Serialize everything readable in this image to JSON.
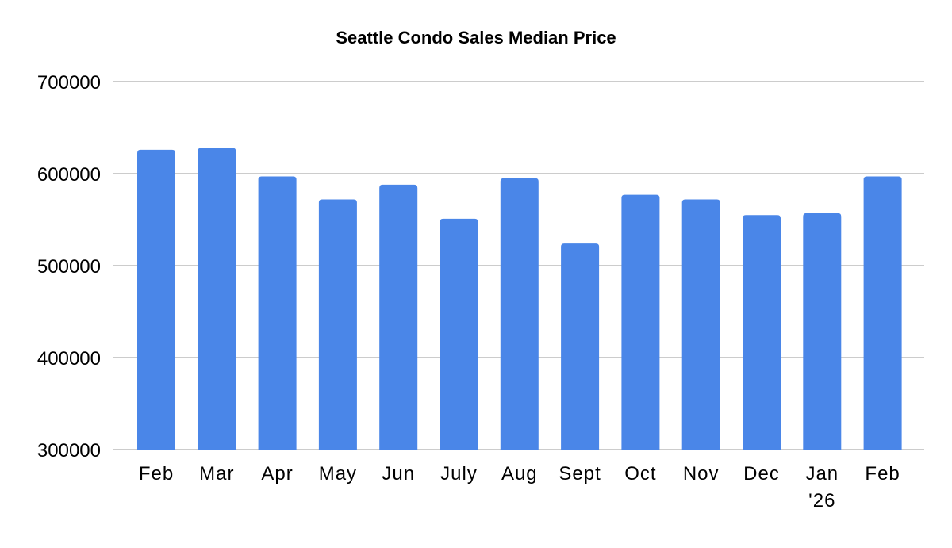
{
  "chart_data": {
    "type": "bar",
    "title": "Seattle Condo Sales Median Price",
    "xlabel": "",
    "ylabel": "",
    "categories": [
      "Feb",
      "Mar",
      "Apr",
      "May",
      "Jun",
      "July",
      "Aug",
      "Sept",
      "Oct",
      "Nov",
      "Dec",
      "Jan\n'26",
      "Feb"
    ],
    "values": [
      626000,
      628000,
      597000,
      572000,
      588000,
      551000,
      595000,
      524000,
      577000,
      572000,
      555000,
      557000,
      597000
    ],
    "ylim": [
      300000,
      700000
    ],
    "yticks": [
      "300000",
      "400000",
      "500000",
      "600000",
      "700000"
    ],
    "grid": true,
    "legend": "none",
    "bar_color": "#4a86e8",
    "grid_color": "#cccccc"
  }
}
